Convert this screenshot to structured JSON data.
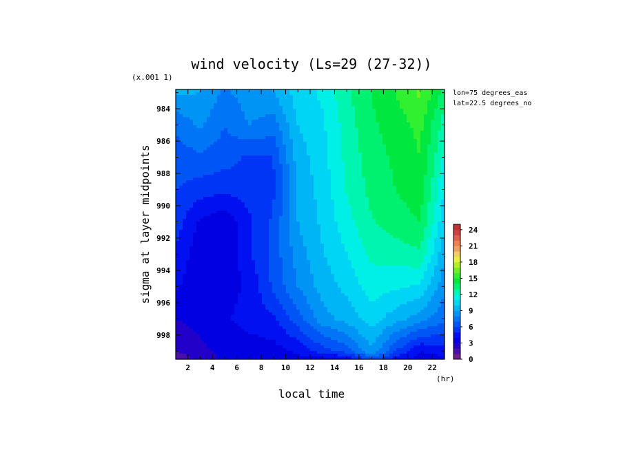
{
  "chart_data": {
    "type": "heatmap",
    "subtype": "filled-contour",
    "title": "wind velocity (Ls=29 (27-32))",
    "xlabel": "local time",
    "x_unit": "(hr)",
    "ylabel": "sigma at layer midpoints",
    "y_multiplier": "(x.001 1)",
    "info_lines": [
      "lon=75 degrees_eas",
      "lat=22.5 degrees_no"
    ],
    "x_ticks": [
      "2",
      "4",
      "6",
      "8",
      "10",
      "12",
      "14",
      "16",
      "18",
      "20",
      "22"
    ],
    "y_ticks": [
      "984",
      "986",
      "988",
      "990",
      "992",
      "994",
      "996",
      "998"
    ],
    "xlim": [
      1,
      23
    ],
    "ylim": [
      999.5,
      982.8
    ],
    "y_inverted": true,
    "colorbar": {
      "ticks": [
        "0",
        "3",
        "6",
        "9",
        "12",
        "15",
        "18",
        "21",
        "24"
      ],
      "min": 0,
      "max": 25,
      "step": 1,
      "colors": [
        "#6e1f8c",
        "#4a10a8",
        "#2200c8",
        "#0000e0",
        "#0010f0",
        "#0035f5",
        "#0055f5",
        "#0075f5",
        "#0095f5",
        "#00b5f5",
        "#00d5f5",
        "#00f0e8",
        "#00f5b0",
        "#00f070",
        "#00e840",
        "#30f030",
        "#70f020",
        "#b0f020",
        "#e8f040",
        "#f0d060",
        "#f0a060",
        "#f08050",
        "#e06050",
        "#d04040",
        "#c03030"
      ]
    },
    "x": [
      1,
      3,
      5,
      7,
      9,
      11,
      13,
      15,
      17,
      19,
      21,
      23
    ],
    "y": [
      983,
      985,
      987,
      989,
      991,
      993,
      995,
      997,
      999,
      999.4
    ],
    "z": [
      [
        9.2,
        9.0,
        7.8,
        8.5,
        9.0,
        10.5,
        11.2,
        12.8,
        14.0,
        15.0,
        16.2,
        13.5
      ],
      [
        7.2,
        8.2,
        7.0,
        8.0,
        7.5,
        10.0,
        10.8,
        12.5,
        13.8,
        14.5,
        15.3,
        12.5
      ],
      [
        6.5,
        6.8,
        6.5,
        5.8,
        6.0,
        9.5,
        10.6,
        12.3,
        13.5,
        14.2,
        15.0,
        11.8
      ],
      [
        6.0,
        5.5,
        5.2,
        5.5,
        5.8,
        9.2,
        10.4,
        12.1,
        13.3,
        14.0,
        14.6,
        11.0
      ],
      [
        5.5,
        3.8,
        3.3,
        4.8,
        6.2,
        9.0,
        10.2,
        11.6,
        12.9,
        13.5,
        14.0,
        10.2
      ],
      [
        4.8,
        3.3,
        3.0,
        4.8,
        6.4,
        8.5,
        9.9,
        11.0,
        12.2,
        12.5,
        12.8,
        9.2
      ],
      [
        4.2,
        3.2,
        3.5,
        4.2,
        6.2,
        8.0,
        9.4,
        10.3,
        11.5,
        11.2,
        10.8,
        8.3
      ],
      [
        3.0,
        3.3,
        3.8,
        4.5,
        4.8,
        6.6,
        8.6,
        9.4,
        10.5,
        9.4,
        8.5,
        7.2
      ],
      [
        2.0,
        2.8,
        3.2,
        3.4,
        3.6,
        4.2,
        5.5,
        6.5,
        8.8,
        6.0,
        4.0,
        4.5
      ],
      [
        1.2,
        2.5,
        3.2,
        3.3,
        3.5,
        3.8,
        4.0,
        4.5,
        6.8,
        4.8,
        3.6,
        3.8
      ]
    ]
  }
}
